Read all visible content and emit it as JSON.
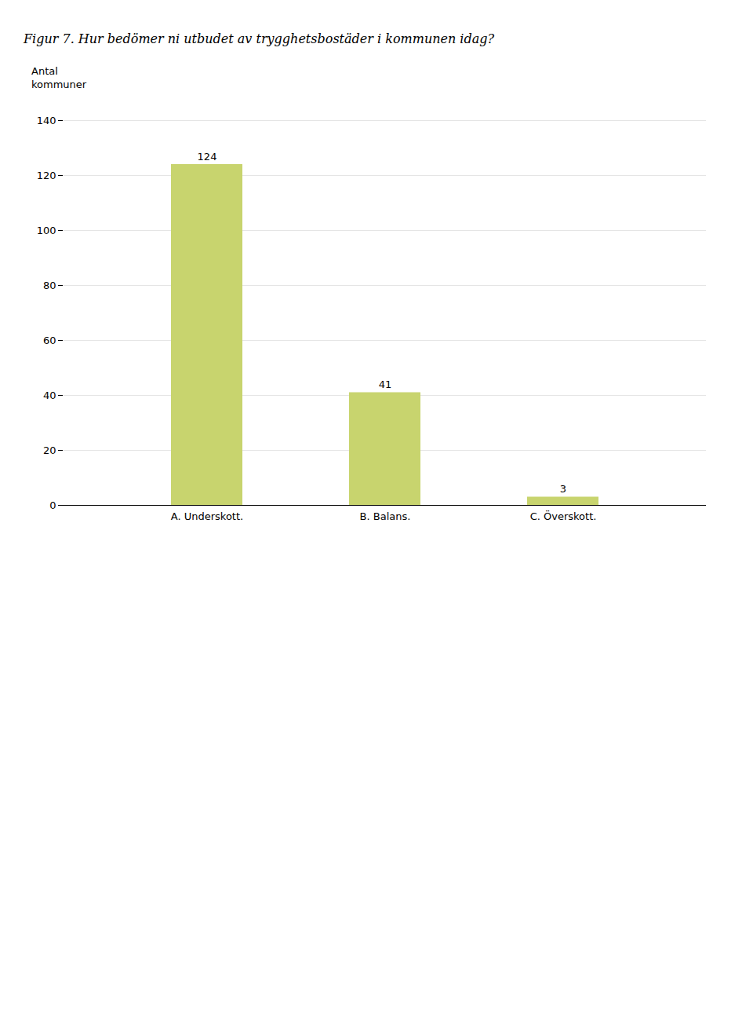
{
  "chart_data": {
    "type": "bar",
    "title": "Figur 7. Hur bedömer ni utbudet av trygghetsbostäder i kommunen idag?",
    "ylabel": "Antal\nkommuner",
    "categories": [
      "A. Underskott.",
      "B. Balans.",
      "C. Överskott."
    ],
    "values": [
      124,
      41,
      3
    ],
    "color": "#c8d46e",
    "ylim": [
      0,
      140
    ],
    "yticks": [
      0,
      20,
      40,
      60,
      80,
      100,
      120,
      140
    ],
    "grid": true,
    "data_labels": true
  }
}
